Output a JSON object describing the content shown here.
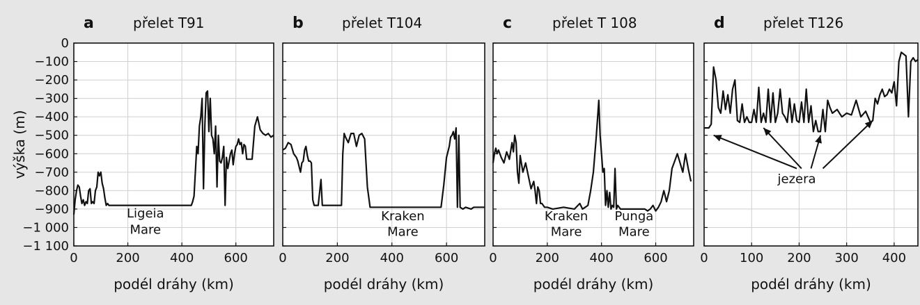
{
  "chart_data": [
    {
      "type": "line",
      "letter": "a",
      "title": "přelet T91",
      "xlabel": "podél dráhy (km)",
      "ylabel": "výška (m)",
      "xlim": [
        0,
        740
      ],
      "ylim": [
        -1100,
        0
      ],
      "xticks": [
        0,
        200,
        400,
        600
      ],
      "yticks": [
        0,
        -100,
        -200,
        -300,
        -400,
        -500,
        -600,
        -700,
        -800,
        -900,
        -1000,
        -1100
      ],
      "ytick_labels": [
        "0",
        "−100",
        "−200",
        "−300",
        "−400",
        "−500",
        "−600",
        "−700",
        "−800",
        "−900",
        "−1 000",
        "−1 100"
      ],
      "grid": true,
      "annotations": [
        {
          "x": 265,
          "y": -945,
          "text": "Ligeia"
        },
        {
          "x": 265,
          "y": -1035,
          "text": "Mare"
        }
      ],
      "series": [
        {
          "x": [
            0,
            5,
            10,
            15,
            20,
            25,
            30,
            35,
            40,
            45,
            50,
            55,
            60,
            65,
            70,
            75,
            80,
            85,
            90,
            95,
            100,
            105,
            110,
            115,
            120,
            125,
            130,
            135,
            140,
            145,
            200,
            300,
            400,
            435,
            440,
            445,
            450,
            455,
            460,
            465,
            470,
            475,
            480,
            485,
            490,
            495,
            500,
            505,
            510,
            515,
            520,
            525,
            530,
            535,
            540,
            545,
            550,
            555,
            560,
            565,
            570,
            575,
            580,
            585,
            590,
            595,
            600,
            605,
            610,
            615,
            620,
            625,
            630,
            635,
            640,
            650,
            660,
            670,
            680,
            690,
            700,
            710,
            720,
            730,
            740
          ],
          "y": [
            -930,
            -850,
            -800,
            -770,
            -780,
            -830,
            -870,
            -850,
            -880,
            -860,
            -870,
            -800,
            -790,
            -870,
            -860,
            -870,
            -800,
            -780,
            -700,
            -720,
            -700,
            -760,
            -790,
            -840,
            -880,
            -870,
            -880,
            -880,
            -880,
            -880,
            -880,
            -880,
            -880,
            -880,
            -860,
            -830,
            -700,
            -560,
            -600,
            -450,
            -400,
            -300,
            -790,
            -450,
            -270,
            -260,
            -480,
            -300,
            -500,
            -520,
            -600,
            -450,
            -780,
            -500,
            -640,
            -650,
            -620,
            -560,
            -880,
            -620,
            -680,
            -640,
            -600,
            -580,
            -660,
            -600,
            -560,
            -550,
            -520,
            -550,
            -540,
            -600,
            -550,
            -560,
            -630,
            -630,
            -630,
            -450,
            -400,
            -470,
            -490,
            -500,
            -490,
            -510,
            -500
          ]
        }
      ]
    },
    {
      "type": "line",
      "letter": "b",
      "title": "přelet T104",
      "xlabel": "podél dráhy (km)",
      "ylabel": "",
      "xlim": [
        0,
        740
      ],
      "ylim": [
        -1100,
        0
      ],
      "xticks": [
        0,
        200,
        400,
        600
      ],
      "yticks": [
        0,
        -100,
        -200,
        -300,
        -400,
        -500,
        -600,
        -700,
        -800,
        -900,
        -1000,
        -1100
      ],
      "grid": true,
      "annotations": [
        {
          "x": 440,
          "y": -960,
          "text": "Kraken"
        },
        {
          "x": 440,
          "y": -1045,
          "text": "Mare"
        }
      ],
      "series": [
        {
          "x": [
            0,
            10,
            20,
            30,
            40,
            50,
            55,
            60,
            65,
            70,
            75,
            80,
            85,
            90,
            95,
            100,
            105,
            110,
            115,
            120,
            130,
            140,
            145,
            150,
            160,
            200,
            215,
            220,
            225,
            230,
            240,
            250,
            260,
            270,
            280,
            290,
            300,
            310,
            320,
            340,
            400,
            500,
            580,
            590,
            600,
            610,
            615,
            620,
            625,
            630,
            635,
            640,
            645,
            650,
            660,
            670,
            690,
            700,
            720,
            740
          ],
          "y": [
            -580,
            -570,
            -540,
            -550,
            -600,
            -620,
            -640,
            -670,
            -700,
            -650,
            -640,
            -580,
            -560,
            -610,
            -640,
            -640,
            -650,
            -850,
            -880,
            -880,
            -880,
            -740,
            -880,
            -880,
            -880,
            -880,
            -880,
            -600,
            -490,
            -510,
            -540,
            -490,
            -490,
            -560,
            -500,
            -490,
            -520,
            -780,
            -890,
            -890,
            -890,
            -890,
            -890,
            -770,
            -620,
            -560,
            -510,
            -500,
            -480,
            -520,
            -460,
            -890,
            -500,
            -890,
            -900,
            -890,
            -900,
            -890,
            -890,
            -890
          ]
        }
      ]
    },
    {
      "type": "line",
      "letter": "c",
      "title": "přelet T 108",
      "xlabel": "podél dráhy (km)",
      "ylabel": "",
      "xlim": [
        0,
        740
      ],
      "ylim": [
        -1100,
        0
      ],
      "xticks": [
        0,
        200,
        400,
        600
      ],
      "yticks": [
        0,
        -100,
        -200,
        -300,
        -400,
        -500,
        -600,
        -700,
        -800,
        -900,
        -1000,
        -1100
      ],
      "grid": true,
      "annotations": [
        {
          "x": 270,
          "y": -960,
          "text": "Kraken"
        },
        {
          "x": 270,
          "y": -1045,
          "text": "Mare"
        },
        {
          "x": 520,
          "y": -960,
          "text": "Punga"
        },
        {
          "x": 520,
          "y": -1045,
          "text": "Mare"
        }
      ],
      "series": [
        {
          "x": [
            0,
            5,
            10,
            15,
            20,
            30,
            40,
            50,
            60,
            70,
            75,
            80,
            85,
            90,
            95,
            100,
            110,
            120,
            130,
            140,
            150,
            155,
            160,
            165,
            170,
            175,
            180,
            190,
            200,
            220,
            260,
            300,
            320,
            330,
            340,
            350,
            360,
            370,
            380,
            385,
            390,
            395,
            400,
            405,
            410,
            415,
            420,
            425,
            430,
            435,
            440,
            445,
            450,
            455,
            460,
            470,
            480,
            500,
            540,
            560,
            570,
            580,
            590,
            600,
            610,
            620,
            630,
            640,
            650,
            660,
            670,
            680,
            690,
            700,
            710,
            720,
            730
          ],
          "y": [
            -650,
            -600,
            -570,
            -600,
            -580,
            -620,
            -650,
            -590,
            -630,
            -540,
            -590,
            -500,
            -540,
            -700,
            -760,
            -610,
            -700,
            -650,
            -720,
            -790,
            -750,
            -800,
            -870,
            -780,
            -800,
            -870,
            -870,
            -890,
            -890,
            -900,
            -890,
            -900,
            -870,
            -900,
            -890,
            -880,
            -800,
            -700,
            -520,
            -420,
            -310,
            -500,
            -600,
            -700,
            -680,
            -880,
            -800,
            -890,
            -810,
            -900,
            -880,
            -890,
            -680,
            -900,
            -880,
            -900,
            -900,
            -900,
            -900,
            -900,
            -910,
            -900,
            -880,
            -910,
            -890,
            -860,
            -800,
            -860,
            -800,
            -680,
            -640,
            -600,
            -650,
            -700,
            -600,
            -680,
            -750
          ]
        }
      ]
    },
    {
      "type": "line",
      "letter": "d",
      "title": "přelet T126",
      "xlabel": "podél dráhy (km)",
      "ylabel": "",
      "xlim": [
        0,
        450
      ],
      "ylim": [
        -1100,
        0
      ],
      "xticks": [
        0,
        100,
        200,
        300,
        400
      ],
      "yticks": [
        0,
        -100,
        -200,
        -300,
        -400,
        -500,
        -600,
        -700,
        -800,
        -900,
        -1000,
        -1100
      ],
      "grid": true,
      "annotations": [
        {
          "x": 195,
          "y": -760,
          "text": "jezera"
        }
      ],
      "arrows": [
        {
          "from": [
            195,
            -680
          ],
          "to": [
            20,
            -500
          ]
        },
        {
          "from": [
            205,
            -680
          ],
          "to": [
            125,
            -460
          ]
        },
        {
          "from": [
            225,
            -680
          ],
          "to": [
            245,
            -500
          ]
        },
        {
          "from": [
            250,
            -680
          ],
          "to": [
            355,
            -420
          ]
        }
      ],
      "series": [
        {
          "x": [
            0,
            10,
            15,
            20,
            25,
            30,
            35,
            40,
            45,
            50,
            55,
            60,
            65,
            70,
            75,
            80,
            85,
            90,
            95,
            100,
            105,
            110,
            115,
            120,
            125,
            130,
            135,
            140,
            145,
            150,
            155,
            160,
            165,
            170,
            175,
            180,
            185,
            190,
            195,
            200,
            205,
            210,
            215,
            220,
            225,
            230,
            235,
            240,
            245,
            250,
            255,
            260,
            265,
            270,
            280,
            290,
            300,
            310,
            320,
            330,
            340,
            350,
            355,
            360,
            365,
            370,
            375,
            380,
            385,
            390,
            395,
            400,
            405,
            410,
            415,
            420,
            425,
            430,
            435,
            440,
            445,
            450
          ],
          "y": [
            -460,
            -460,
            -440,
            -130,
            -200,
            -350,
            -380,
            -260,
            -360,
            -280,
            -380,
            -250,
            -200,
            -420,
            -430,
            -330,
            -430,
            -400,
            -430,
            -430,
            -360,
            -430,
            -240,
            -430,
            -380,
            -430,
            -250,
            -430,
            -270,
            -430,
            -380,
            -250,
            -380,
            -400,
            -430,
            -300,
            -430,
            -330,
            -420,
            -430,
            -320,
            -430,
            -250,
            -430,
            -340,
            -480,
            -420,
            -480,
            -480,
            -360,
            -480,
            -310,
            -350,
            -380,
            -360,
            -400,
            -380,
            -390,
            -310,
            -400,
            -370,
            -430,
            -420,
            -300,
            -330,
            -280,
            -250,
            -290,
            -280,
            -250,
            -270,
            -210,
            -340,
            -100,
            -50,
            -60,
            -70,
            -400,
            -100,
            -80,
            -100,
            -90
          ]
        }
      ]
    }
  ]
}
